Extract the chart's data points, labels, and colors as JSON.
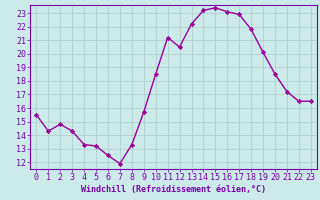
{
  "x": [
    0,
    1,
    2,
    3,
    4,
    5,
    6,
    7,
    8,
    9,
    10,
    11,
    12,
    13,
    14,
    15,
    16,
    17,
    18,
    19,
    20,
    21,
    22,
    23
  ],
  "y": [
    15.5,
    14.3,
    14.8,
    14.3,
    13.3,
    13.2,
    12.5,
    11.9,
    13.3,
    15.7,
    18.5,
    21.2,
    20.5,
    22.2,
    23.2,
    23.4,
    23.1,
    22.9,
    21.8,
    20.1,
    18.5,
    17.2,
    16.5,
    16.5
  ],
  "line_color": "#990099",
  "marker": "D",
  "marker_size": 2.2,
  "bg_color": "#cceaea",
  "grid_color": "#aacccc",
  "axis_color": "#7700aa",
  "tick_color": "#7700aa",
  "xlabel": "Windchill (Refroidissement éolien,°C)",
  "xlabel_fontsize": 6.0,
  "ylabel_ticks": [
    12,
    13,
    14,
    15,
    16,
    17,
    18,
    19,
    20,
    21,
    22,
    23
  ],
  "xticks": [
    0,
    1,
    2,
    3,
    4,
    5,
    6,
    7,
    8,
    9,
    10,
    11,
    12,
    13,
    14,
    15,
    16,
    17,
    18,
    19,
    20,
    21,
    22,
    23
  ],
  "ylim": [
    11.5,
    23.6
  ],
  "xlim": [
    -0.5,
    23.5
  ],
  "tick_fontsize": 6.0,
  "linewidth": 1.0
}
